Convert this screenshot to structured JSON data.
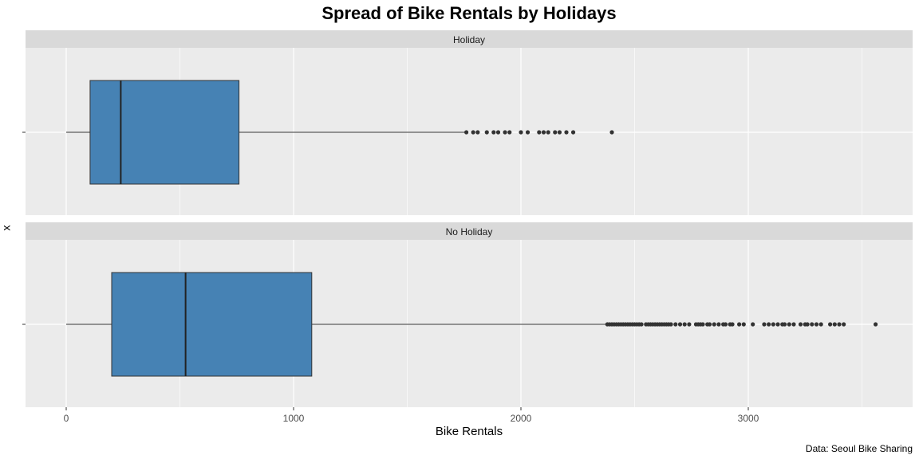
{
  "chart_data": {
    "type": "boxplot",
    "title": "Spread of Bike Rentals by Holidays",
    "xlabel": "Bike Rentals",
    "ylabel": "x",
    "caption": "Data: Seoul Bike Sharing",
    "xlim": [
      -180,
      3730
    ],
    "x_ticks": [
      0,
      1000,
      2000,
      3000
    ],
    "orientation": "horizontal",
    "grid": true,
    "colors": {
      "box_fill": "#4682B4",
      "panel_bg": "#EBEBEB",
      "strip_bg": "#D9D9D9",
      "grid": "#FFFFFF",
      "outline": "#333333"
    },
    "panels": [
      {
        "name": "Holiday",
        "whisker_low": 0,
        "q1": 105,
        "median": 240,
        "q3": 760,
        "whisker_high": 1760,
        "outliers": [
          1760,
          1790,
          1810,
          1850,
          1880,
          1900,
          1930,
          1950,
          2000,
          2030,
          2080,
          2100,
          2120,
          2150,
          2170,
          2200,
          2230,
          2400
        ]
      },
      {
        "name": "No Holiday",
        "whisker_low": 0,
        "q1": 200,
        "median": 525,
        "q3": 1080,
        "whisker_high": 2380,
        "outliers": [
          2380,
          2390,
          2400,
          2410,
          2420,
          2430,
          2440,
          2450,
          2460,
          2470,
          2480,
          2490,
          2500,
          2510,
          2520,
          2530,
          2550,
          2560,
          2570,
          2580,
          2590,
          2600,
          2610,
          2620,
          2630,
          2640,
          2650,
          2660,
          2680,
          2700,
          2720,
          2740,
          2770,
          2780,
          2790,
          2800,
          2820,
          2830,
          2850,
          2870,
          2890,
          2900,
          2920,
          2930,
          2960,
          2980,
          3020,
          3070,
          3090,
          3110,
          3130,
          3150,
          3160,
          3180,
          3200,
          3230,
          3250,
          3260,
          3280,
          3300,
          3320,
          3360,
          3380,
          3400,
          3420,
          3560
        ]
      }
    ]
  }
}
